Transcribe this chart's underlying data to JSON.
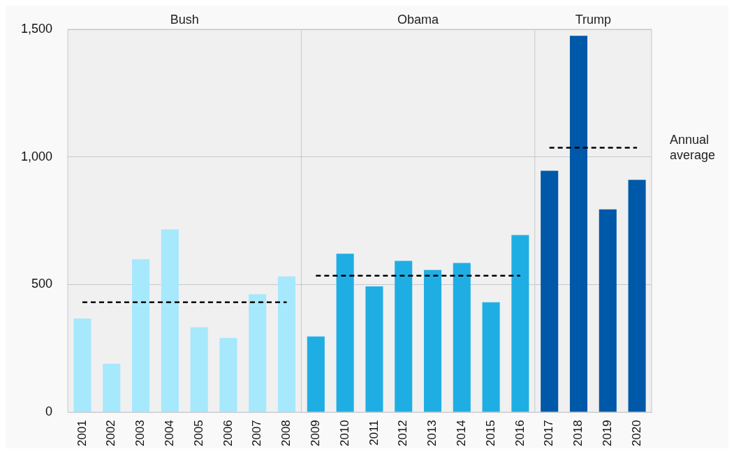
{
  "chart_data": {
    "type": "bar",
    "categories": [
      "2001",
      "2002",
      "2003",
      "2004",
      "2005",
      "2006",
      "2007",
      "2008",
      "2009",
      "2010",
      "2011",
      "2012",
      "2013",
      "2014",
      "2015",
      "2016",
      "2017",
      "2018",
      "2019",
      "2020"
    ],
    "series": [
      {
        "type": "bar",
        "colors": [
          "#a6e8fc",
          "#a6e8fc",
          "#a6e8fc",
          "#a6e8fc",
          "#a6e8fc",
          "#a6e8fc",
          "#a6e8fc",
          "#a6e8fc",
          "#1faee4",
          "#1faee4",
          "#1faee4",
          "#1faee4",
          "#1faee4",
          "#1faee4",
          "#1faee4",
          "#1faee4",
          "#0058a8",
          "#0058a8",
          "#0058a8",
          "#0058a8"
        ],
        "values": [
          367,
          190,
          599,
          716,
          333,
          291,
          462,
          532,
          297,
          621,
          493,
          593,
          557,
          585,
          431,
          694,
          946,
          1475,
          795,
          910
        ]
      },
      {
        "type": "line",
        "color": "#000000",
        "line_style": "dashed",
        "values": [
          431,
          431,
          431,
          431,
          431,
          431,
          431,
          431,
          null,
          null,
          null,
          null,
          null,
          null,
          null,
          null,
          null,
          null,
          null,
          null
        ]
      },
      {
        "type": "line",
        "color": "#000000",
        "line_style": "dashed",
        "values": [
          null,
          null,
          null,
          null,
          null,
          null,
          null,
          null,
          535,
          535,
          535,
          535,
          535,
          535,
          535,
          535,
          null,
          null,
          null,
          null
        ]
      },
      {
        "type": "line",
        "name": "Annual average",
        "color": "#000000",
        "line_style": "dashed",
        "values": [
          null,
          null,
          null,
          null,
          null,
          null,
          null,
          null,
          null,
          null,
          null,
          null,
          null,
          null,
          null,
          null,
          1036,
          1036,
          1036,
          1036
        ]
      }
    ],
    "bands": [
      {
        "axis": "x",
        "from": "2001",
        "to": "2008",
        "label": "Bush",
        "color": "#f0f0f0"
      },
      {
        "axis": "x",
        "from": "2009",
        "to": "2016",
        "label": "Obama",
        "color": "#f0f0f0"
      },
      {
        "axis": "x",
        "from": "2017",
        "to": "2020",
        "label": "Trump",
        "color": "#f0f0f0"
      }
    ],
    "ylim": [
      0,
      1500
    ],
    "yticks": [
      0,
      500,
      {
        "value": 1000,
        "label": "1,000"
      },
      {
        "value": 1500,
        "label": "1,500"
      }
    ],
    "grid": "y",
    "legend": false
  }
}
